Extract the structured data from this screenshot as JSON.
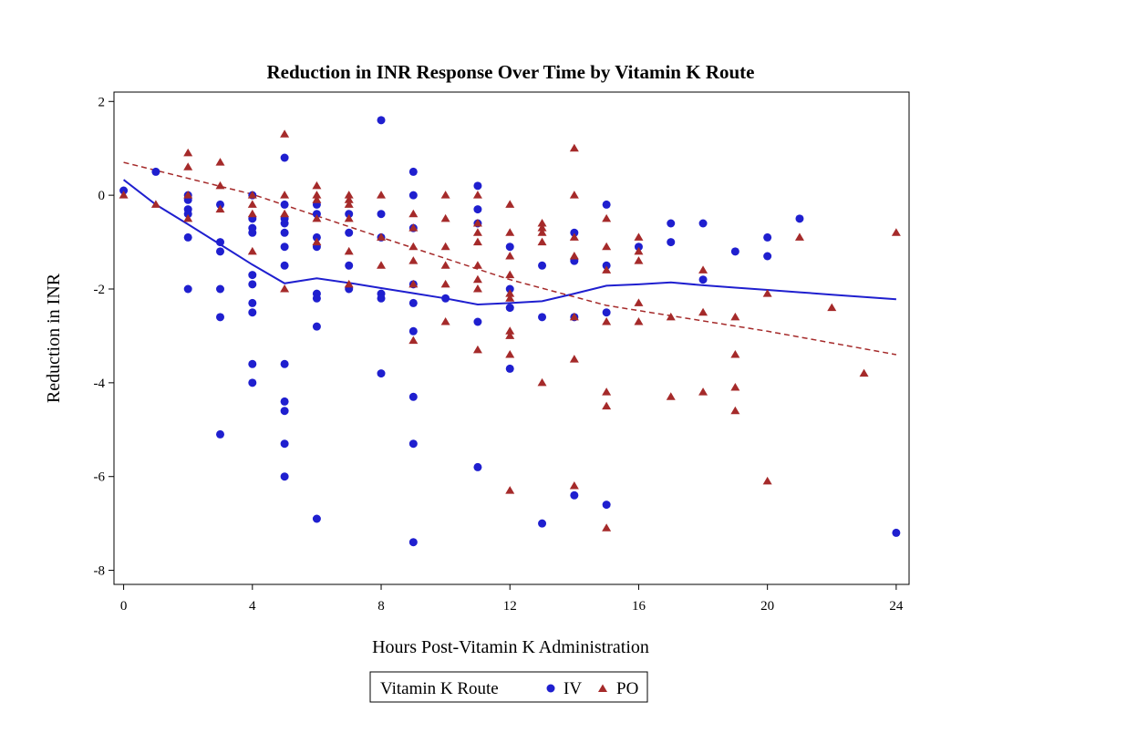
{
  "chart_data": {
    "type": "scatter",
    "title": "Reduction in INR Response Over Time by Vitamin K Route",
    "xlabel": "Hours Post-Vitamin K Administration",
    "ylabel": "Reduction in INR",
    "xlim": [
      -0.3,
      24.4
    ],
    "ylim": [
      -8.3,
      2.2
    ],
    "x_ticks": [
      0,
      4,
      8,
      12,
      16,
      20,
      24
    ],
    "y_ticks": [
      -8,
      -6,
      -4,
      -2,
      0,
      2
    ],
    "grid": false,
    "legend": {
      "title": "Vitamin K Route",
      "placement": "bottom-center",
      "entries": [
        "IV",
        "PO"
      ]
    },
    "colors": {
      "IV": "#1f1fcf",
      "PO": "#a52a2a"
    },
    "series": [
      {
        "name": "IV",
        "marker": "circle",
        "color": "#1f1fcf",
        "points": [
          [
            0,
            0.1
          ],
          [
            1,
            0.5
          ],
          [
            2,
            0
          ],
          [
            2,
            -0.1
          ],
          [
            2,
            -0.3
          ],
          [
            2,
            -0.4
          ],
          [
            2,
            -0.9
          ],
          [
            2,
            -2.0
          ],
          [
            3,
            -0.2
          ],
          [
            3,
            -1.0
          ],
          [
            3,
            -1.2
          ],
          [
            3,
            -2.0
          ],
          [
            3,
            -2.6
          ],
          [
            3,
            -5.1
          ],
          [
            4,
            0
          ],
          [
            4,
            -0.5
          ],
          [
            4,
            -0.7
          ],
          [
            4,
            -0.8
          ],
          [
            4,
            -1.7
          ],
          [
            4,
            -1.9
          ],
          [
            4,
            -2.3
          ],
          [
            4,
            -2.5
          ],
          [
            4,
            -3.6
          ],
          [
            4,
            -4.0
          ],
          [
            5,
            0.8
          ],
          [
            5,
            -0.2
          ],
          [
            5,
            -0.5
          ],
          [
            5,
            -0.6
          ],
          [
            5,
            -0.8
          ],
          [
            5,
            -1.1
          ],
          [
            5,
            -1.5
          ],
          [
            5,
            -3.6
          ],
          [
            5,
            -4.4
          ],
          [
            5,
            -4.6
          ],
          [
            5,
            -5.3
          ],
          [
            5,
            -6.0
          ],
          [
            6,
            -0.2
          ],
          [
            6,
            -0.4
          ],
          [
            6,
            -0.9
          ],
          [
            6,
            -1.1
          ],
          [
            6,
            -2.1
          ],
          [
            6,
            -2.2
          ],
          [
            6,
            -2.8
          ],
          [
            6,
            -6.9
          ],
          [
            7,
            -0.4
          ],
          [
            7,
            -0.8
          ],
          [
            7,
            -1.5
          ],
          [
            7,
            -2.0
          ],
          [
            8,
            1.6
          ],
          [
            8,
            -0.4
          ],
          [
            8,
            -0.9
          ],
          [
            8,
            -2.1
          ],
          [
            8,
            -2.2
          ],
          [
            8,
            -3.8
          ],
          [
            9,
            0.5
          ],
          [
            9,
            0
          ],
          [
            9,
            -0.7
          ],
          [
            9,
            -1.9
          ],
          [
            9,
            -2.3
          ],
          [
            9,
            -2.9
          ],
          [
            9,
            -4.3
          ],
          [
            9,
            -5.3
          ],
          [
            9,
            -7.4
          ],
          [
            10,
            -2.2
          ],
          [
            11,
            0.2
          ],
          [
            11,
            -0.3
          ],
          [
            11,
            -0.6
          ],
          [
            11,
            -2.7
          ],
          [
            11,
            -5.8
          ],
          [
            12,
            -1.1
          ],
          [
            12,
            -2.0
          ],
          [
            12,
            -2.4
          ],
          [
            12,
            -3.7
          ],
          [
            13,
            -1.5
          ],
          [
            13,
            -2.6
          ],
          [
            13,
            -7.0
          ],
          [
            14,
            -0.8
          ],
          [
            14,
            -1.4
          ],
          [
            14,
            -2.6
          ],
          [
            14,
            -6.4
          ],
          [
            15,
            -0.2
          ],
          [
            15,
            -1.5
          ],
          [
            15,
            -2.5
          ],
          [
            15,
            -6.6
          ],
          [
            16,
            -1.1
          ],
          [
            17,
            -0.6
          ],
          [
            17,
            -1.0
          ],
          [
            18,
            -0.6
          ],
          [
            18,
            -1.8
          ],
          [
            19,
            -1.2
          ],
          [
            20,
            -0.9
          ],
          [
            20,
            -1.3
          ],
          [
            21,
            -0.5
          ],
          [
            24,
            -7.2
          ]
        ],
        "trend": [
          [
            0,
            0.33
          ],
          [
            1,
            -0.2
          ],
          [
            2,
            -0.62
          ],
          [
            3,
            -1.05
          ],
          [
            4,
            -1.48
          ],
          [
            5,
            -1.88
          ],
          [
            6,
            -1.77
          ],
          [
            7,
            -1.87
          ],
          [
            8,
            -1.98
          ],
          [
            9,
            -2.09
          ],
          [
            10,
            -2.2
          ],
          [
            11,
            -2.33
          ],
          [
            12,
            -2.3
          ],
          [
            13,
            -2.26
          ],
          [
            14,
            -2.1
          ],
          [
            15,
            -1.93
          ],
          [
            16,
            -1.9
          ],
          [
            17,
            -1.86
          ],
          [
            18,
            -1.92
          ],
          [
            19,
            -1.97
          ],
          [
            20,
            -2.02
          ],
          [
            21,
            -2.07
          ],
          [
            22,
            -2.12
          ],
          [
            23,
            -2.17
          ],
          [
            24,
            -2.22
          ]
        ]
      },
      {
        "name": "PO",
        "marker": "triangle",
        "color": "#a52a2a",
        "points": [
          [
            0,
            0
          ],
          [
            1,
            -0.2
          ],
          [
            2,
            0.9
          ],
          [
            2,
            0.6
          ],
          [
            2,
            0
          ],
          [
            2,
            -0.5
          ],
          [
            3,
            0.7
          ],
          [
            3,
            0.2
          ],
          [
            3,
            -0.3
          ],
          [
            4,
            0
          ],
          [
            4,
            -0.2
          ],
          [
            4,
            -0.4
          ],
          [
            4,
            -1.2
          ],
          [
            5,
            1.3
          ],
          [
            5,
            0
          ],
          [
            5,
            -0.4
          ],
          [
            5,
            -2.0
          ],
          [
            6,
            0.2
          ],
          [
            6,
            0
          ],
          [
            6,
            -0.1
          ],
          [
            6,
            -0.5
          ],
          [
            6,
            -1.0
          ],
          [
            7,
            0
          ],
          [
            7,
            -0.1
          ],
          [
            7,
            -0.2
          ],
          [
            7,
            -0.5
          ],
          [
            7,
            -1.2
          ],
          [
            7,
            -1.9
          ],
          [
            8,
            0
          ],
          [
            8,
            -0.9
          ],
          [
            8,
            -1.5
          ],
          [
            9,
            -0.4
          ],
          [
            9,
            -0.7
          ],
          [
            9,
            -1.1
          ],
          [
            9,
            -1.4
          ],
          [
            9,
            -1.9
          ],
          [
            9,
            -3.1
          ],
          [
            10,
            0
          ],
          [
            10,
            -0.5
          ],
          [
            10,
            -1.1
          ],
          [
            10,
            -1.5
          ],
          [
            10,
            -1.9
          ],
          [
            10,
            -2.7
          ],
          [
            11,
            0
          ],
          [
            11,
            -0.6
          ],
          [
            11,
            -0.8
          ],
          [
            11,
            -1.0
          ],
          [
            11,
            -1.5
          ],
          [
            11,
            -1.8
          ],
          [
            11,
            -2.0
          ],
          [
            11,
            -3.3
          ],
          [
            12,
            -0.2
          ],
          [
            12,
            -0.8
          ],
          [
            12,
            -1.3
          ],
          [
            12,
            -1.7
          ],
          [
            12,
            -2.1
          ],
          [
            12,
            -2.2
          ],
          [
            12,
            -2.9
          ],
          [
            12,
            -3.0
          ],
          [
            12,
            -3.4
          ],
          [
            12,
            -6.3
          ],
          [
            13,
            -0.6
          ],
          [
            13,
            -0.7
          ],
          [
            13,
            -0.8
          ],
          [
            13,
            -1.0
          ],
          [
            13,
            -4.0
          ],
          [
            14,
            1.0
          ],
          [
            14,
            0
          ],
          [
            14,
            -0.9
          ],
          [
            14,
            -1.3
          ],
          [
            14,
            -2.6
          ],
          [
            14,
            -3.5
          ],
          [
            14,
            -6.2
          ],
          [
            15,
            -0.5
          ],
          [
            15,
            -1.1
          ],
          [
            15,
            -1.6
          ],
          [
            15,
            -2.7
          ],
          [
            15,
            -4.2
          ],
          [
            15,
            -4.5
          ],
          [
            15,
            -7.1
          ],
          [
            16,
            -0.9
          ],
          [
            16,
            -1.2
          ],
          [
            16,
            -1.4
          ],
          [
            16,
            -2.3
          ],
          [
            16,
            -2.7
          ],
          [
            17,
            -2.6
          ],
          [
            17,
            -4.3
          ],
          [
            18,
            -1.6
          ],
          [
            18,
            -2.5
          ],
          [
            18,
            -4.2
          ],
          [
            19,
            -2.6
          ],
          [
            19,
            -3.4
          ],
          [
            19,
            -4.1
          ],
          [
            19,
            -4.6
          ],
          [
            20,
            -2.1
          ],
          [
            20,
            -6.1
          ],
          [
            21,
            -0.9
          ],
          [
            22,
            -2.4
          ],
          [
            23,
            -3.8
          ],
          [
            24,
            -0.8
          ]
        ],
        "trend": [
          [
            0,
            0.7
          ],
          [
            4,
            0.02
          ],
          [
            8,
            -0.9
          ],
          [
            12,
            -1.8
          ],
          [
            15,
            -2.35
          ],
          [
            20,
            -2.9
          ],
          [
            24,
            -3.4
          ]
        ]
      }
    ]
  }
}
